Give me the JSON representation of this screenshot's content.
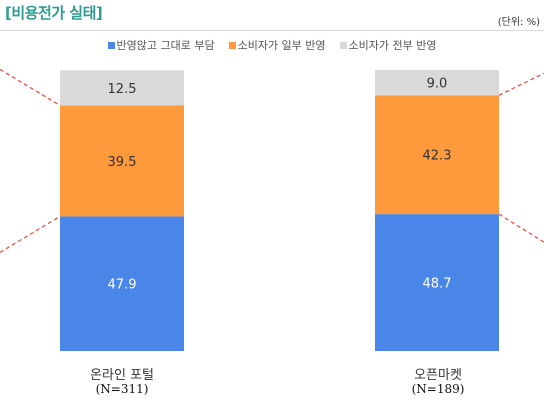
{
  "title": "[비용전가 실태]",
  "unit_label": "(단위: %)",
  "colors": {
    "title": "#2e9b8f",
    "series": [
      "#4a86e8",
      "#ff9a3c",
      "#d9d9d9"
    ],
    "divider": "#e8473b"
  },
  "chart_data": {
    "type": "bar",
    "stacked": true,
    "orientation": "vertical",
    "categories": [
      "온라인 포털",
      "오픈마켓"
    ],
    "category_n": [
      "(N=311)",
      "(N=189)"
    ],
    "series": [
      {
        "name": "반영않고 그대로 부담",
        "values": [
          47.9,
          48.7
        ]
      },
      {
        "name": "소비자가 일부 반영",
        "values": [
          39.5,
          42.3
        ]
      },
      {
        "name": "소비자가 전부 반영",
        "values": [
          12.5,
          9.0
        ]
      }
    ],
    "value_labels": [
      [
        "47.9",
        "48.7"
      ],
      [
        "39.5",
        "42.3"
      ],
      [
        "12.5",
        "9.0"
      ]
    ],
    "ylim": [
      0,
      100
    ],
    "legend_position": "top",
    "grid": false
  }
}
